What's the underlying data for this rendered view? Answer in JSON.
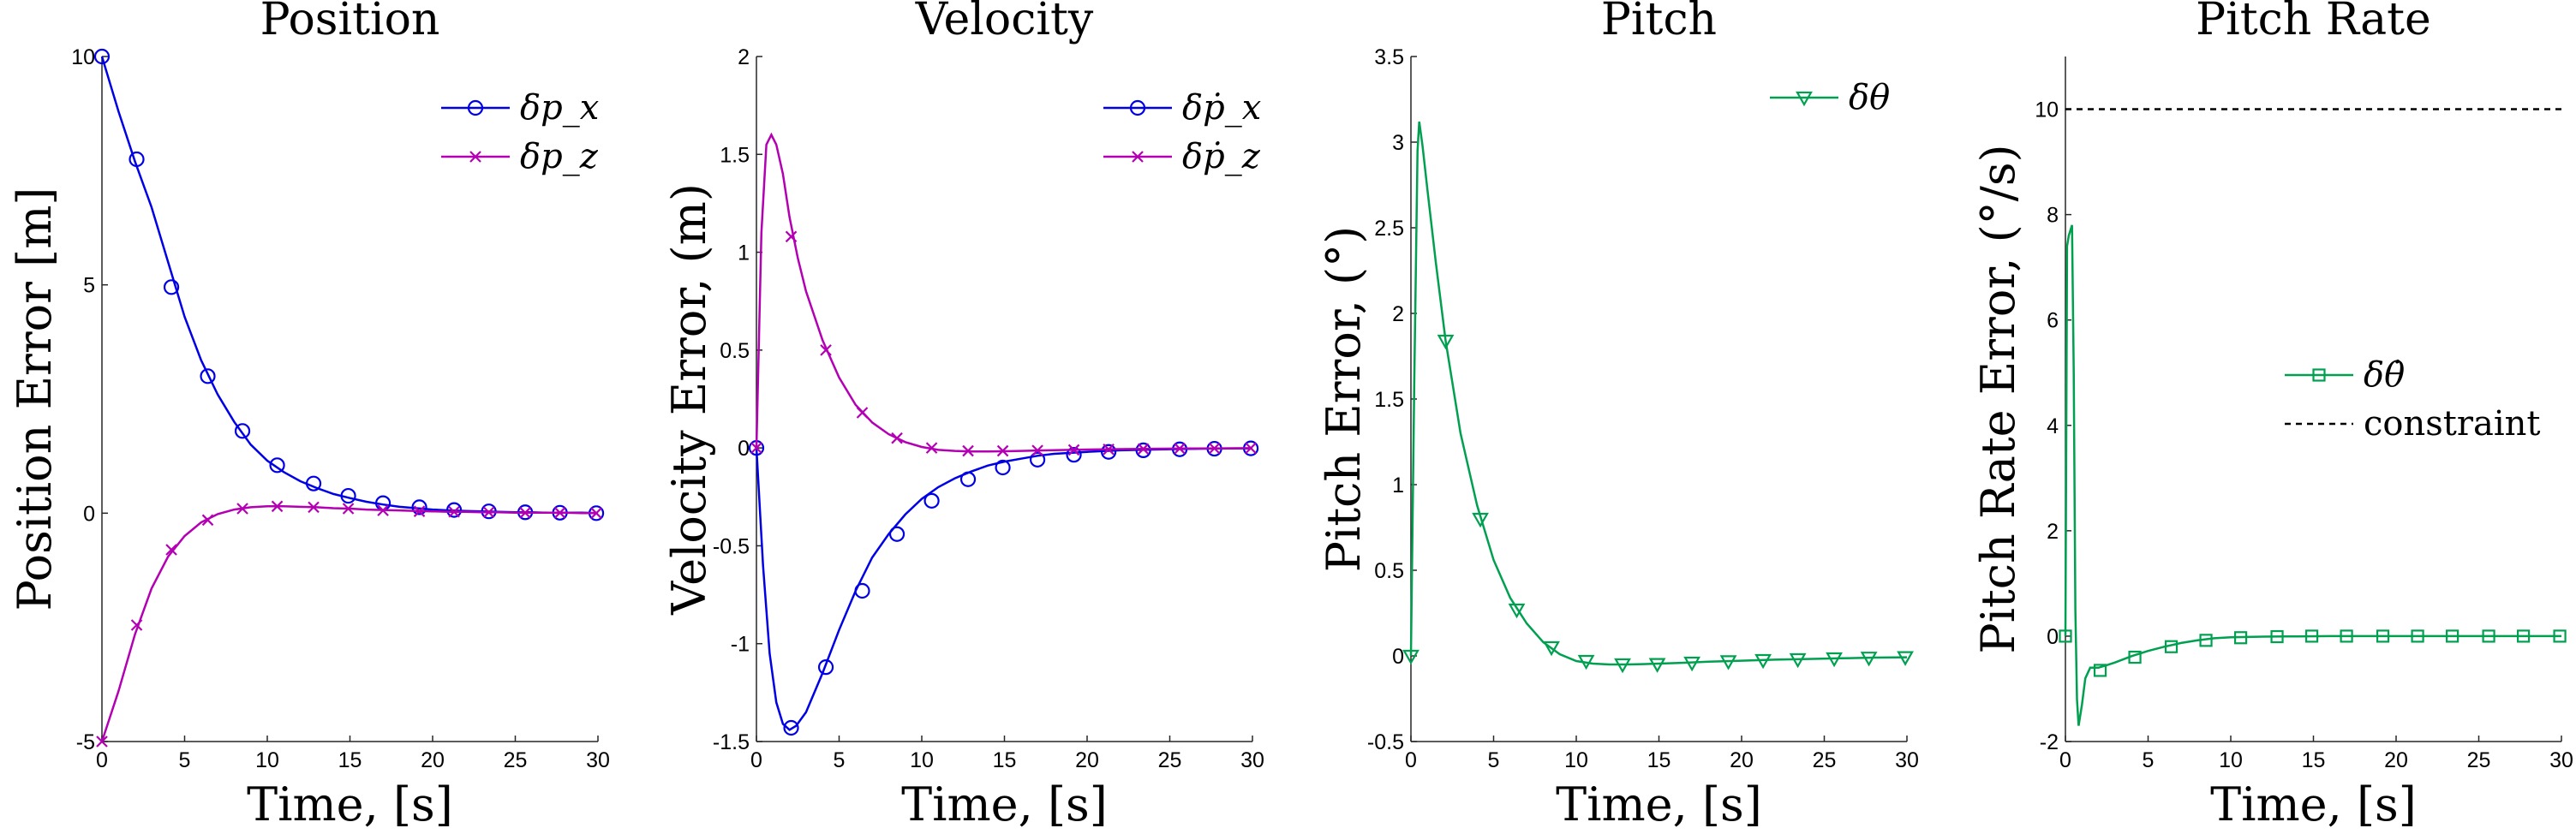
{
  "chart_data": [
    {
      "type": "line",
      "title": "Position",
      "xlabel": "Time, [s]",
      "ylabel": "Position Error [m]",
      "xlim": [
        0,
        30
      ],
      "ylim": [
        -5,
        10
      ],
      "xticks": [
        0,
        5,
        10,
        15,
        20,
        25,
        30
      ],
      "yticks": [
        -5,
        0,
        5,
        10
      ],
      "ytick_labels": [
        "-5",
        "0",
        "5",
        "10"
      ],
      "legend_position": "top-right",
      "series": [
        {
          "name": "δp_x",
          "color": "#0000e6",
          "marker": "circle",
          "x": [
            0,
            1,
            2,
            3,
            4,
            5,
            6,
            7,
            8,
            9,
            10,
            11,
            12,
            13,
            14,
            15,
            16,
            17,
            18,
            19,
            20,
            21,
            22,
            23,
            24,
            25,
            26,
            27,
            28,
            29,
            30
          ],
          "y": [
            10,
            8.8,
            7.7,
            6.7,
            5.5,
            4.3,
            3.35,
            2.6,
            2.0,
            1.5,
            1.15,
            0.9,
            0.7,
            0.55,
            0.42,
            0.33,
            0.25,
            0.19,
            0.14,
            0.11,
            0.08,
            0.06,
            0.05,
            0.04,
            0.03,
            0.02,
            0.02,
            0.01,
            0.01,
            0.01,
            0.0
          ],
          "markers_x": [
            0,
            2.1,
            4.2,
            6.4,
            8.5,
            10.6,
            12.8,
            14.9,
            17.0,
            19.2,
            21.3,
            23.4,
            25.6,
            27.7,
            29.9
          ],
          "markers_y": [
            10,
            7.75,
            4.95,
            3.0,
            1.8,
            1.05,
            0.65,
            0.38,
            0.22,
            0.13,
            0.07,
            0.04,
            0.02,
            0.01,
            0.0
          ]
        },
        {
          "name": "δp_z",
          "color": "#b300b3",
          "marker": "x",
          "x": [
            0,
            1,
            2,
            3,
            4,
            5,
            6,
            7,
            8,
            9,
            10,
            11,
            12,
            13,
            14,
            15,
            16,
            17,
            18,
            19,
            20,
            21,
            22,
            23,
            24,
            25,
            26,
            27,
            28,
            29,
            30
          ],
          "y": [
            -5,
            -3.9,
            -2.65,
            -1.65,
            -0.95,
            -0.5,
            -0.2,
            -0.02,
            0.08,
            0.13,
            0.15,
            0.15,
            0.14,
            0.13,
            0.11,
            0.1,
            0.08,
            0.07,
            0.06,
            0.05,
            0.04,
            0.03,
            0.03,
            0.02,
            0.02,
            0.01,
            0.01,
            0.01,
            0.01,
            0.0,
            0.0
          ],
          "markers_x": [
            0,
            2.1,
            4.2,
            6.4,
            8.5,
            10.6,
            12.8,
            14.9,
            17.0,
            19.2,
            21.3,
            23.4,
            25.6,
            27.7,
            29.9
          ],
          "markers_y": [
            -5,
            -2.45,
            -0.8,
            -0.15,
            0.1,
            0.15,
            0.13,
            0.1,
            0.06,
            0.04,
            0.03,
            0.02,
            0.01,
            0.01,
            0.0
          ]
        }
      ]
    },
    {
      "type": "line",
      "title": "Velocity",
      "xlabel": "Time, [s]",
      "ylabel": "Velocity Error, (m)",
      "xlim": [
        0,
        30
      ],
      "ylim": [
        -1.5,
        2
      ],
      "xticks": [
        0,
        5,
        10,
        15,
        20,
        25,
        30
      ],
      "yticks": [
        -1.5,
        -1,
        -0.5,
        0,
        0.5,
        1,
        1.5,
        2
      ],
      "ytick_labels": [
        "-1.5",
        "-1",
        "-0.5",
        "0",
        "0.5",
        "1",
        "1.5",
        "2"
      ],
      "legend_position": "top-right",
      "series": [
        {
          "name": "δṗ_x",
          "color": "#0000e6",
          "marker": "circle",
          "x": [
            0,
            0.4,
            0.8,
            1.2,
            1.6,
            2.0,
            2.4,
            3,
            4,
            5,
            6,
            7,
            8,
            9,
            10,
            11,
            12,
            13,
            14,
            15,
            16,
            17,
            18,
            19,
            20,
            22,
            24,
            26,
            28,
            30
          ],
          "y": [
            0,
            -0.6,
            -1.05,
            -1.3,
            -1.41,
            -1.44,
            -1.42,
            -1.35,
            -1.15,
            -0.93,
            -0.73,
            -0.56,
            -0.44,
            -0.34,
            -0.26,
            -0.2,
            -0.155,
            -0.12,
            -0.09,
            -0.07,
            -0.055,
            -0.04,
            -0.03,
            -0.025,
            -0.02,
            -0.012,
            -0.008,
            -0.005,
            -0.003,
            -0.002
          ],
          "markers_x": [
            0,
            2.1,
            4.2,
            6.4,
            8.5,
            10.6,
            12.8,
            14.9,
            17.0,
            19.2,
            21.3,
            23.4,
            25.6,
            27.7,
            29.9
          ],
          "markers_y": [
            0,
            -1.43,
            -1.12,
            -0.73,
            -0.44,
            -0.27,
            -0.16,
            -0.1,
            -0.06,
            -0.035,
            -0.02,
            -0.012,
            -0.007,
            -0.004,
            -0.002
          ]
        },
        {
          "name": "δṗ_z",
          "color": "#b300b3",
          "marker": "x",
          "x": [
            0,
            0.3,
            0.6,
            0.9,
            1.2,
            1.6,
            2.0,
            2.5,
            3,
            4,
            5,
            6,
            7,
            8,
            9,
            10,
            11,
            12,
            13,
            14,
            15,
            16,
            17,
            18,
            20,
            22,
            24,
            26,
            28,
            30
          ],
          "y": [
            0,
            1.1,
            1.55,
            1.6,
            1.55,
            1.4,
            1.18,
            0.97,
            0.8,
            0.55,
            0.36,
            0.22,
            0.13,
            0.07,
            0.03,
            0.005,
            -0.01,
            -0.015,
            -0.018,
            -0.018,
            -0.017,
            -0.015,
            -0.013,
            -0.011,
            -0.008,
            -0.006,
            -0.004,
            -0.003,
            -0.002,
            -0.001
          ],
          "markers_x": [
            0,
            2.1,
            4.2,
            6.4,
            8.5,
            10.6,
            12.8,
            14.9,
            17.0,
            19.2,
            21.3,
            23.4,
            25.6,
            27.7,
            29.9
          ],
          "markers_y": [
            0,
            1.08,
            0.5,
            0.18,
            0.05,
            0.0,
            -0.015,
            -0.015,
            -0.013,
            -0.01,
            -0.007,
            -0.005,
            -0.003,
            -0.002,
            -0.001
          ]
        }
      ]
    },
    {
      "type": "line",
      "title": "Pitch",
      "xlabel": "Time, [s]",
      "ylabel": "Pitch Error, (°)",
      "xlim": [
        0,
        30
      ],
      "ylim": [
        -0.5,
        3.5
      ],
      "xticks": [
        0,
        5,
        10,
        15,
        20,
        25,
        30
      ],
      "yticks": [
        -0.5,
        0,
        0.5,
        1,
        1.5,
        2,
        2.5,
        3,
        3.5
      ],
      "ytick_labels": [
        "-0.5",
        "0",
        "0.5",
        "1",
        "1.5",
        "2",
        "2.5",
        "3",
        "3.5"
      ],
      "legend_position": "top-right",
      "series": [
        {
          "name": "δθ",
          "color": "#00a050",
          "marker": "triangle-down",
          "x": [
            0,
            0.2,
            0.4,
            0.5,
            0.7,
            1.0,
            1.5,
            2.1,
            3,
            4,
            5,
            6,
            7,
            8,
            9,
            10,
            11,
            12,
            13,
            14,
            15,
            16,
            17,
            18,
            20,
            22,
            24,
            26,
            28,
            30
          ],
          "y": [
            0,
            1.6,
            2.95,
            3.12,
            2.98,
            2.72,
            2.3,
            1.84,
            1.3,
            0.88,
            0.56,
            0.34,
            0.19,
            0.08,
            0.01,
            -0.03,
            -0.045,
            -0.05,
            -0.05,
            -0.048,
            -0.045,
            -0.042,
            -0.038,
            -0.034,
            -0.028,
            -0.022,
            -0.018,
            -0.014,
            -0.01,
            -0.008
          ],
          "markers_x": [
            0,
            2.1,
            4.2,
            6.4,
            8.5,
            10.6,
            12.8,
            14.9,
            17.0,
            19.2,
            21.3,
            23.4,
            25.6,
            27.7,
            29.9
          ],
          "markers_y": [
            0,
            1.84,
            0.8,
            0.27,
            0.05,
            -0.03,
            -0.05,
            -0.048,
            -0.04,
            -0.032,
            -0.025,
            -0.02,
            -0.015,
            -0.011,
            -0.008
          ]
        }
      ]
    },
    {
      "type": "line",
      "title": "Pitch Rate",
      "xlabel": "Time, [s]",
      "ylabel": "Pitch Rate Error, (°/s)",
      "xlim": [
        0,
        30
      ],
      "ylim": [
        -2,
        11
      ],
      "xticks": [
        0,
        5,
        10,
        15,
        20,
        25,
        30
      ],
      "yticks": [
        -2,
        0,
        2,
        4,
        6,
        8,
        10
      ],
      "ytick_labels": [
        "-2",
        "0",
        "2",
        "4",
        "6",
        "8",
        "10"
      ],
      "legend_position": "center-right",
      "series": [
        {
          "name": "δθ̇",
          "color": "#00a050",
          "marker": "square",
          "x": [
            0,
            0.1,
            0.2,
            0.3,
            0.4,
            0.5,
            0.6,
            0.7,
            0.8,
            1.0,
            1.2,
            1.5,
            2.0,
            2.5,
            3,
            4,
            5,
            6,
            7,
            8,
            9,
            10,
            12,
            14,
            16,
            18,
            20,
            22,
            24,
            26,
            28,
            30
          ],
          "y": [
            0,
            7.4,
            7.6,
            7.7,
            7.8,
            5.0,
            0.5,
            -1.2,
            -1.7,
            -1.3,
            -0.8,
            -0.6,
            -0.6,
            -0.55,
            -0.5,
            -0.38,
            -0.28,
            -0.2,
            -0.13,
            -0.08,
            -0.04,
            -0.02,
            -0.01,
            -0.005,
            0,
            0,
            0,
            0,
            0,
            0,
            0,
            0
          ],
          "markers_x": [
            0,
            2.1,
            4.2,
            6.4,
            8.5,
            10.6,
            12.8,
            14.9,
            17.0,
            19.2,
            21.3,
            23.4,
            25.6,
            27.7,
            29.9
          ],
          "markers_y": [
            0,
            -0.65,
            -0.4,
            -0.2,
            -0.08,
            -0.03,
            -0.01,
            0,
            0,
            0,
            0,
            0,
            0,
            0,
            0
          ]
        },
        {
          "name": "constraint",
          "color": "#000000",
          "marker": "none",
          "dashed": true,
          "x": [
            0,
            30
          ],
          "y": [
            10,
            10
          ]
        }
      ]
    }
  ]
}
